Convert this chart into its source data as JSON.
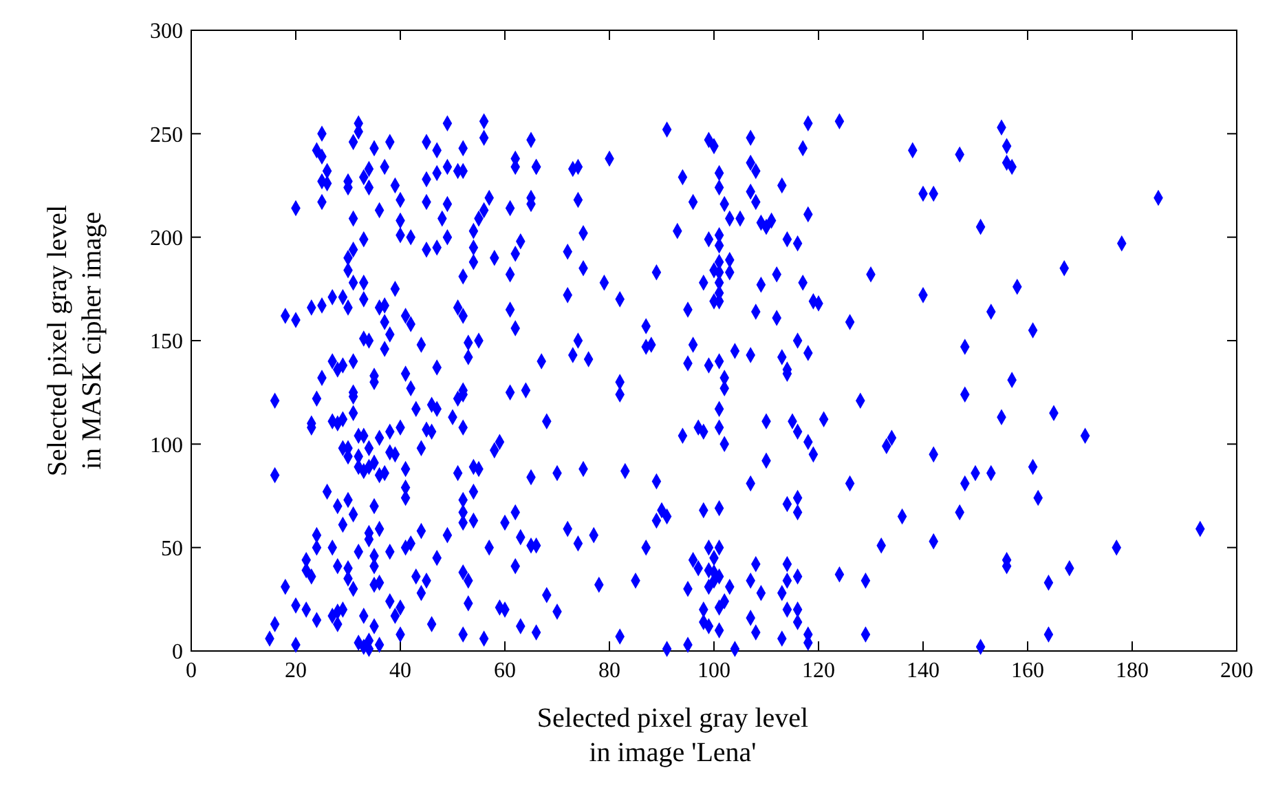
{
  "chart_data": {
    "type": "scatter",
    "xlabel": "Selected pixel gray level\nin image 'Lena'",
    "ylabel": "Selected pixel gray level\nin MASK cipher image",
    "xlim": [
      0,
      200
    ],
    "xticks": [
      0,
      20,
      40,
      60,
      80,
      100,
      120,
      140,
      160,
      180,
      200
    ],
    "ylim": [
      0,
      300
    ],
    "yticks": [
      0,
      50,
      100,
      150,
      200,
      250,
      300
    ],
    "marker": "diamond",
    "series": [
      {
        "color": "#0000ff",
        "x": [
          155,
          138,
          147,
          156,
          156,
          157,
          140,
          142,
          185,
          151,
          178,
          167,
          140,
          158,
          153,
          161,
          148,
          157,
          148,
          155,
          165,
          171,
          133,
          134,
          142,
          150,
          153,
          148,
          161,
          162,
          136,
          147,
          142,
          132,
          177,
          193,
          156,
          156,
          168,
          164,
          164,
          151,
          91,
          118,
          124,
          99,
          100,
          107,
          117,
          66,
          73,
          74,
          80,
          94,
          101,
          107,
          108,
          101,
          113,
          107,
          108,
          96,
          102,
          74,
          118,
          103,
          105,
          109,
          110,
          111,
          93,
          75,
          99,
          101,
          101,
          114,
          116,
          72,
          75,
          103,
          101,
          100,
          101,
          103,
          89,
          130,
          112,
          79,
          98,
          101,
          101,
          100,
          101,
          109,
          117,
          72,
          82,
          119,
          120,
          95,
          108,
          112,
          126,
          87,
          74,
          87,
          88,
          96,
          116,
          67,
          73,
          76,
          104,
          107,
          118,
          113,
          114,
          114,
          95,
          99,
          101,
          102,
          82,
          82,
          102,
          128,
          68,
          101,
          101,
          102,
          94,
          97,
          98,
          110,
          115,
          116,
          121,
          118,
          119,
          70,
          75,
          83,
          89,
          110,
          107,
          126,
          90,
          89,
          91,
          98,
          101,
          114,
          116,
          116,
          72,
          74,
          77,
          87,
          66,
          99,
          101,
          100,
          96,
          97,
          99,
          100,
          101,
          99,
          100,
          103,
          108,
          107,
          109,
          114,
          114,
          116,
          113,
          124,
          129,
          85,
          78,
          68,
          70,
          95,
          102,
          101,
          98,
          98,
          99,
          101,
          114,
          116,
          116,
          107,
          108,
          113,
          118,
          118,
          82,
          91,
          95,
          104,
          129,
          25,
          32,
          32,
          49,
          56,
          56,
          31,
          35,
          38,
          45,
          47,
          52,
          65,
          24,
          25,
          26,
          34,
          37,
          33,
          51,
          52,
          49,
          47,
          45,
          62,
          62,
          66,
          25,
          26,
          30,
          30,
          34,
          39,
          40,
          25,
          20,
          45,
          49,
          57,
          56,
          55,
          61,
          65,
          65,
          36,
          31,
          40,
          48,
          33,
          40,
          42,
          49,
          54,
          63,
          31,
          30,
          30,
          45,
          47,
          54,
          54,
          58,
          62,
          61,
          52,
          31,
          33,
          39,
          33,
          27,
          29,
          25,
          23,
          30,
          18,
          20,
          36,
          37,
          37,
          38,
          41,
          42,
          33,
          34,
          37,
          44,
          47,
          51,
          52,
          61,
          62,
          53,
          55,
          53,
          27,
          29,
          28,
          31,
          25,
          35,
          41,
          35,
          42,
          16,
          24,
          31,
          31,
          43,
          46,
          47,
          51,
          52,
          52,
          61,
          64,
          23,
          23,
          27,
          28,
          29,
          31,
          40,
          38,
          32,
          33,
          36,
          45,
          46,
          50,
          52,
          29,
          30,
          30,
          32,
          34,
          32,
          33,
          34,
          35,
          36,
          37,
          38,
          39,
          41,
          44,
          51,
          54,
          55,
          58,
          59,
          65,
          16,
          26,
          28,
          30,
          31,
          35,
          29,
          41,
          41,
          44,
          52,
          52,
          52,
          54,
          54,
          49,
          24,
          24,
          27,
          34,
          34,
          36,
          32,
          38,
          35,
          35,
          42,
          41,
          22,
          22,
          23,
          28,
          30,
          30,
          31,
          18,
          35,
          36,
          43,
          45,
          44,
          47,
          52,
          53,
          53,
          62,
          65,
          57,
          60,
          62,
          63,
          20,
          22,
          24,
          27,
          28,
          29,
          28,
          33,
          38,
          39,
          40,
          35,
          16,
          15,
          20,
          32,
          33,
          34,
          34,
          36,
          40,
          46,
          52,
          56,
          59,
          60,
          63,
          66
        ],
        "values": [
          253,
          242,
          240,
          244,
          236,
          234,
          221,
          221,
          219,
          205,
          197,
          185,
          172,
          176,
          164,
          155,
          147,
          131,
          124,
          113,
          115,
          104,
          99,
          103,
          95,
          86,
          86,
          81,
          89,
          74,
          65,
          67,
          53,
          51,
          50,
          59,
          44,
          41,
          40,
          33,
          8,
          2,
          252,
          255,
          256,
          247,
          244,
          248,
          243,
          234,
          233,
          234,
          238,
          229,
          231,
          236,
          232,
          224,
          225,
          222,
          217,
          217,
          216,
          218,
          211,
          209,
          209,
          207,
          205,
          208,
          203,
          202,
          199,
          201,
          196,
          199,
          197,
          193,
          185,
          189,
          188,
          184,
          183,
          183,
          183,
          182,
          182,
          178,
          178,
          178,
          173,
          169,
          169,
          177,
          178,
          172,
          170,
          169,
          168,
          165,
          164,
          161,
          159,
          157,
          150,
          147,
          148,
          148,
          150,
          140,
          143,
          141,
          145,
          143,
          144,
          142,
          136,
          134,
          139,
          138,
          140,
          132,
          130,
          124,
          127,
          121,
          111,
          117,
          108,
          100,
          104,
          108,
          106,
          111,
          111,
          106,
          112,
          101,
          95,
          86,
          88,
          87,
          82,
          92,
          81,
          81,
          68,
          63,
          65,
          68,
          69,
          71,
          74,
          67,
          59,
          52,
          56,
          50,
          51,
          50,
          50,
          45,
          44,
          40,
          39,
          38,
          36,
          31,
          34,
          31,
          42,
          34,
          28,
          42,
          34,
          36,
          28,
          37,
          34,
          34,
          32,
          27,
          19,
          30,
          24,
          21,
          20,
          14,
          12,
          10,
          20,
          20,
          14,
          16,
          9,
          6,
          8,
          4,
          7,
          1,
          3,
          1,
          8,
          250,
          255,
          251,
          255,
          256,
          248,
          246,
          243,
          246,
          246,
          242,
          243,
          247,
          242,
          239,
          232,
          233,
          234,
          229,
          232,
          232,
          234,
          231,
          228,
          238,
          234,
          234,
          227,
          226,
          227,
          224,
          224,
          225,
          218,
          217,
          214,
          217,
          216,
          219,
          213,
          209,
          214,
          219,
          216,
          213,
          209,
          208,
          209,
          199,
          201,
          200,
          200,
          203,
          198,
          194,
          190,
          184,
          194,
          195,
          195,
          188,
          190,
          192,
          182,
          181,
          178,
          178,
          175,
          170,
          171,
          171,
          167,
          166,
          166,
          162,
          160,
          166,
          167,
          159,
          153,
          162,
          158,
          151,
          150,
          146,
          148,
          137,
          166,
          162,
          165,
          156,
          149,
          150,
          142,
          140,
          138,
          136,
          140,
          132,
          133,
          134,
          130,
          127,
          121,
          122,
          125,
          123,
          117,
          119,
          117,
          122,
          126,
          124,
          125,
          126,
          110,
          108,
          111,
          110,
          112,
          115,
          108,
          106,
          104,
          104,
          103,
          107,
          106,
          113,
          108,
          98,
          98,
          94,
          94,
          98,
          89,
          87,
          89,
          91,
          85,
          86,
          96,
          95,
          88,
          98,
          86,
          89,
          88,
          97,
          101,
          84,
          85,
          77,
          70,
          73,
          66,
          70,
          61,
          79,
          74,
          58,
          73,
          67,
          62,
          77,
          63,
          56,
          56,
          50,
          50,
          57,
          54,
          59,
          48,
          48,
          46,
          41,
          52,
          50,
          44,
          39,
          36,
          41,
          40,
          35,
          30,
          31,
          32,
          33,
          36,
          34,
          28,
          45,
          38,
          34,
          23,
          41,
          51,
          50,
          62,
          67,
          55,
          22,
          20,
          15,
          17,
          19,
          20,
          13,
          17,
          24,
          17,
          21,
          12,
          13,
          6,
          3,
          4,
          2,
          5,
          1,
          3,
          8,
          13,
          8,
          6,
          21,
          20,
          12,
          9
        ]
      }
    ]
  }
}
